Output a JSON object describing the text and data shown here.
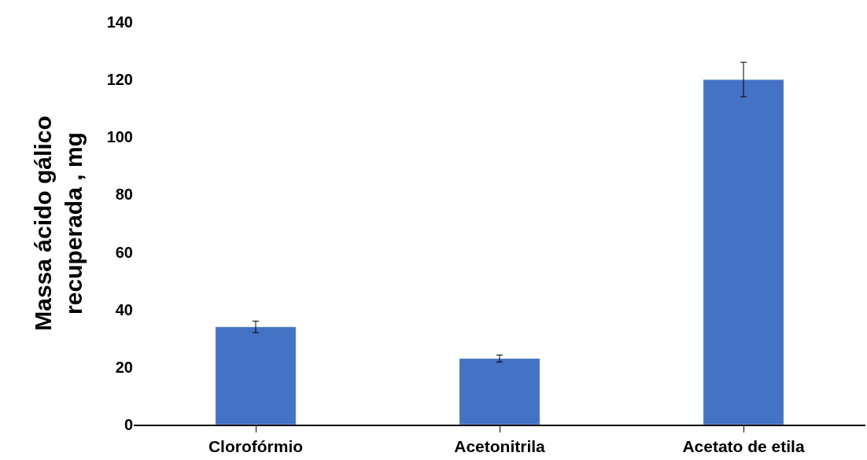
{
  "chart_data": {
    "type": "bar",
    "ylabel": "Massa ácido gálico recuperada , mg",
    "categories": [
      "Clorofórmio",
      "Acetonitrila",
      "Acetato de etila"
    ],
    "values": [
      34,
      23,
      120
    ],
    "errors": [
      2,
      1.2,
      6
    ],
    "color": "#4472c4",
    "ylim": [
      0,
      140
    ],
    "yticks": [
      0,
      20,
      40,
      60,
      80,
      100,
      120,
      140
    ]
  }
}
